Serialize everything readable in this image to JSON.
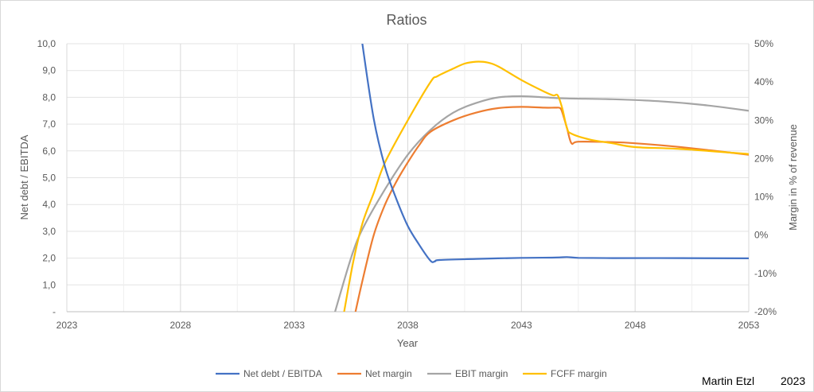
{
  "credits": {
    "author": "Martin Etzl",
    "year": "2023"
  },
  "chart_data": {
    "type": "line",
    "title": "Ratios",
    "xlabel": "Year",
    "ylabel": "Net debt / EBITDA",
    "y2label": "Margin in % of revenue",
    "xlim": [
      2023,
      2053
    ],
    "ylim": [
      0,
      10
    ],
    "y2lim": [
      -20,
      50
    ],
    "xticks": [
      2023,
      2028,
      2033,
      2038,
      2043,
      2048,
      2053
    ],
    "yticks": [
      0,
      1,
      2,
      3,
      4,
      5,
      6,
      7,
      8,
      9,
      10
    ],
    "ytick_labels": [
      "-",
      "1,0",
      "2,0",
      "3,0",
      "4,0",
      "5,0",
      "6,0",
      "7,0",
      "8,0",
      "9,0",
      "10,0"
    ],
    "y2ticks": [
      -20,
      -10,
      0,
      10,
      20,
      30,
      40,
      50
    ],
    "y2tick_labels": [
      "-20%",
      "-10%",
      "0%",
      "10%",
      "20%",
      "30%",
      "40%",
      "50%"
    ],
    "grid": true,
    "legend_position": "bottom",
    "series": [
      {
        "name": "Net debt / EBITDA",
        "axis": "left",
        "color": "#4472c4",
        "points": [
          [
            36.0,
            10.0
          ],
          [
            36.5,
            7.2
          ],
          [
            37.0,
            5.4
          ],
          [
            37.5,
            4.2
          ],
          [
            38.0,
            3.2
          ],
          [
            38.5,
            2.5
          ],
          [
            39.0,
            1.9
          ],
          [
            39.2,
            1.88
          ],
          [
            39.4,
            1.93
          ],
          [
            41.0,
            1.97
          ],
          [
            43.0,
            2.01
          ],
          [
            44.5,
            2.02
          ],
          [
            45.0,
            2.04
          ],
          [
            45.5,
            2.01
          ],
          [
            47.0,
            2.0
          ],
          [
            50.0,
            2.0
          ],
          [
            53.0,
            1.99
          ]
        ]
      },
      {
        "name": "Net margin",
        "axis": "right",
        "color": "#ed7d31",
        "points": [
          [
            35.7,
            -20.0
          ],
          [
            36.0,
            -12.0
          ],
          [
            36.5,
            0.0
          ],
          [
            37.0,
            8.0
          ],
          [
            37.5,
            14.0
          ],
          [
            38.0,
            19.0
          ],
          [
            38.5,
            23.5
          ],
          [
            39.0,
            27.0
          ],
          [
            40.0,
            30.0
          ],
          [
            41.0,
            32.0
          ],
          [
            42.0,
            33.2
          ],
          [
            43.0,
            33.5
          ],
          [
            44.0,
            33.3
          ],
          [
            44.5,
            33.3
          ],
          [
            44.7,
            33.2
          ],
          [
            44.8,
            32.0
          ],
          [
            45.0,
            28.0
          ],
          [
            45.2,
            24.0
          ],
          [
            45.5,
            24.4
          ],
          [
            47.0,
            24.3
          ],
          [
            48.0,
            24.0
          ],
          [
            50.0,
            23.0
          ],
          [
            53.0,
            21.0
          ]
        ]
      },
      {
        "name": "EBIT margin",
        "axis": "right",
        "color": "#a5a5a5",
        "points": [
          [
            34.8,
            -20.0
          ],
          [
            35.5,
            -6.0
          ],
          [
            36.0,
            1.5
          ],
          [
            37.0,
            12.0
          ],
          [
            38.0,
            21.0
          ],
          [
            39.0,
            27.5
          ],
          [
            40.0,
            32.0
          ],
          [
            41.0,
            34.5
          ],
          [
            42.0,
            36.0
          ],
          [
            43.0,
            36.3
          ],
          [
            44.0,
            36.0
          ],
          [
            45.0,
            35.7
          ],
          [
            47.0,
            35.5
          ],
          [
            49.0,
            35.0
          ],
          [
            51.0,
            34.0
          ],
          [
            53.0,
            32.5
          ]
        ]
      },
      {
        "name": "FCFF margin",
        "axis": "right",
        "color": "#ffc000",
        "points": [
          [
            35.2,
            -20.0
          ],
          [
            35.6,
            -7.0
          ],
          [
            36.0,
            3.0
          ],
          [
            36.5,
            11.0
          ],
          [
            37.0,
            19.0
          ],
          [
            38.0,
            30.0
          ],
          [
            39.0,
            40.0
          ],
          [
            39.3,
            41.5
          ],
          [
            40.0,
            43.5
          ],
          [
            40.5,
            44.8
          ],
          [
            41.0,
            45.3
          ],
          [
            41.5,
            45.1
          ],
          [
            42.0,
            44.0
          ],
          [
            43.0,
            40.5
          ],
          [
            44.0,
            37.5
          ],
          [
            44.4,
            36.5
          ],
          [
            44.6,
            36.5
          ],
          [
            44.8,
            33.0
          ],
          [
            45.0,
            28.0
          ],
          [
            45.2,
            26.5
          ],
          [
            46.0,
            25.0
          ],
          [
            47.0,
            24.0
          ],
          [
            48.0,
            23.0
          ],
          [
            50.0,
            22.5
          ],
          [
            53.0,
            21.2
          ]
        ]
      }
    ]
  }
}
